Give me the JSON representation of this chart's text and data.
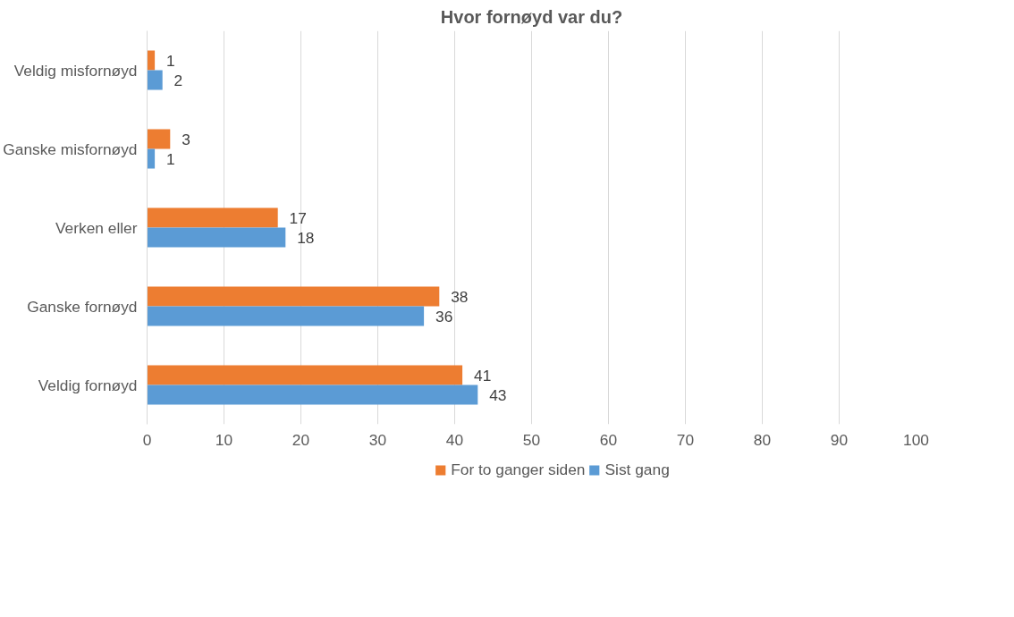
{
  "chart_data": {
    "type": "bar",
    "orientation": "horizontal",
    "title": "Hvor fornøyd var du?",
    "categories": [
      "Veldig misfornøyd",
      "Ganske misfornøyd",
      "Verken eller",
      "Ganske fornøyd",
      "Veldig fornøyd"
    ],
    "series": [
      {
        "name": "For to ganger siden",
        "color": "#ed7d31",
        "values": [
          1,
          3,
          17,
          38,
          41
        ]
      },
      {
        "name": "Sist gang",
        "color": "#5b9bd5",
        "values": [
          2,
          1,
          18,
          36,
          43
        ]
      }
    ],
    "xlim": [
      0,
      100
    ],
    "xticks": [
      0,
      10,
      20,
      30,
      40,
      50,
      60,
      70,
      80,
      90,
      100
    ],
    "grid": "x",
    "legend": "bottom",
    "data_labels": true
  }
}
